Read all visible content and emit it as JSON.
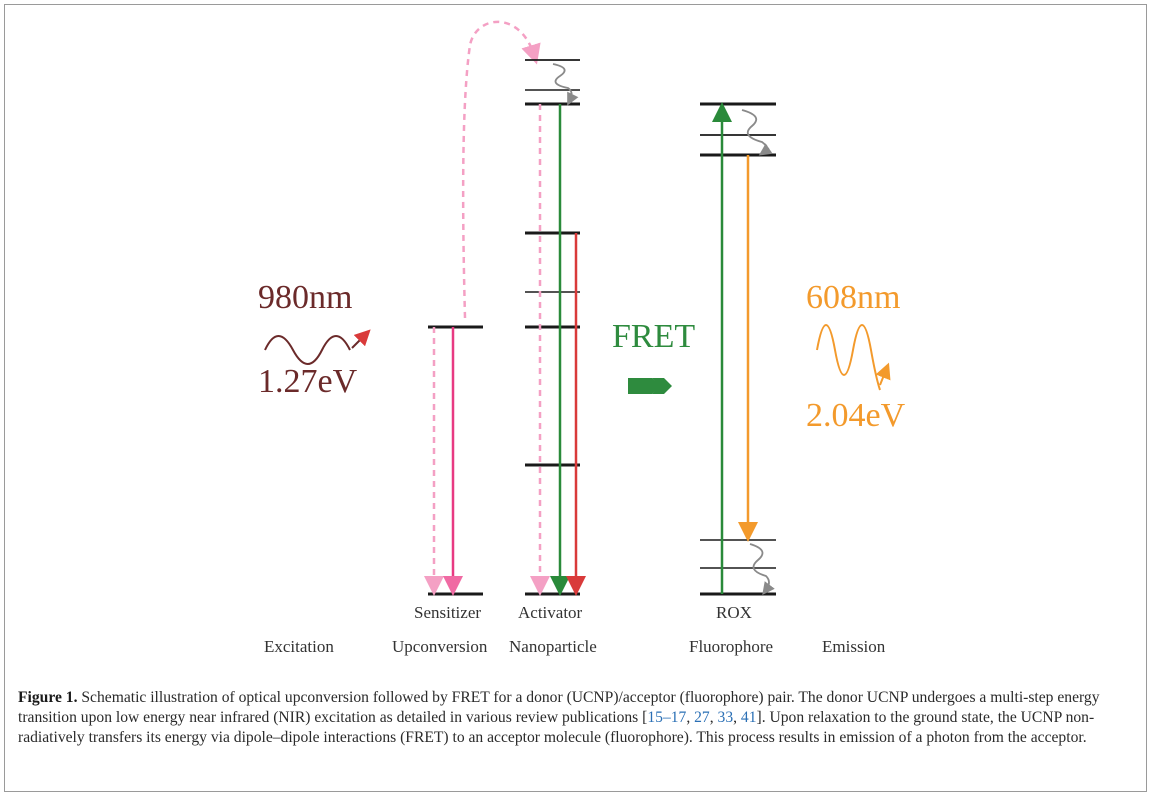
{
  "figure": {
    "excitation": {
      "wavelength": "980nm",
      "energy": "1.27eV",
      "color": "#6b2a2a"
    },
    "fret_label": "FRET",
    "fret_color": "#2e8b3e",
    "emission": {
      "wavelength": "608nm",
      "energy": "2.04eV",
      "color": "#f39a2c"
    },
    "level_labels": {
      "sensitizer": "Sensitizer",
      "activator": "Activator",
      "rox": "ROX"
    },
    "section_labels": {
      "excitation": "Excitation",
      "upconversion": "Upconversion",
      "nanoparticle": "Nanoparticle",
      "fluorophore": "Fluorophore",
      "emission": "Emission"
    },
    "colors": {
      "pink": "#f06aa3",
      "pink_dashed": "#f4a0c4",
      "green": "#2a8a3a",
      "red": "#d93a3a",
      "orange": "#f39a2c",
      "level": "#1a1a1a"
    }
  },
  "caption": {
    "label": "Figure 1.",
    "part1": " Schematic illustration of optical upconversion followed by FRET for a donor (UCNP)/acceptor (fluorophore) pair. The donor UCNP undergoes a multi-step energy transition upon low energy near infrared (NIR) excitation as detailed in various review publications [",
    "refs": [
      "15–17",
      "27",
      "33",
      "41"
    ],
    "part2": "]. Upon relaxation to the ground state, the UCNP non-radiatively transfers its energy via dipole–dipole interactions (FRET) to an acceptor molecule (fluorophore). This process results in emission of a photon from the acceptor."
  }
}
